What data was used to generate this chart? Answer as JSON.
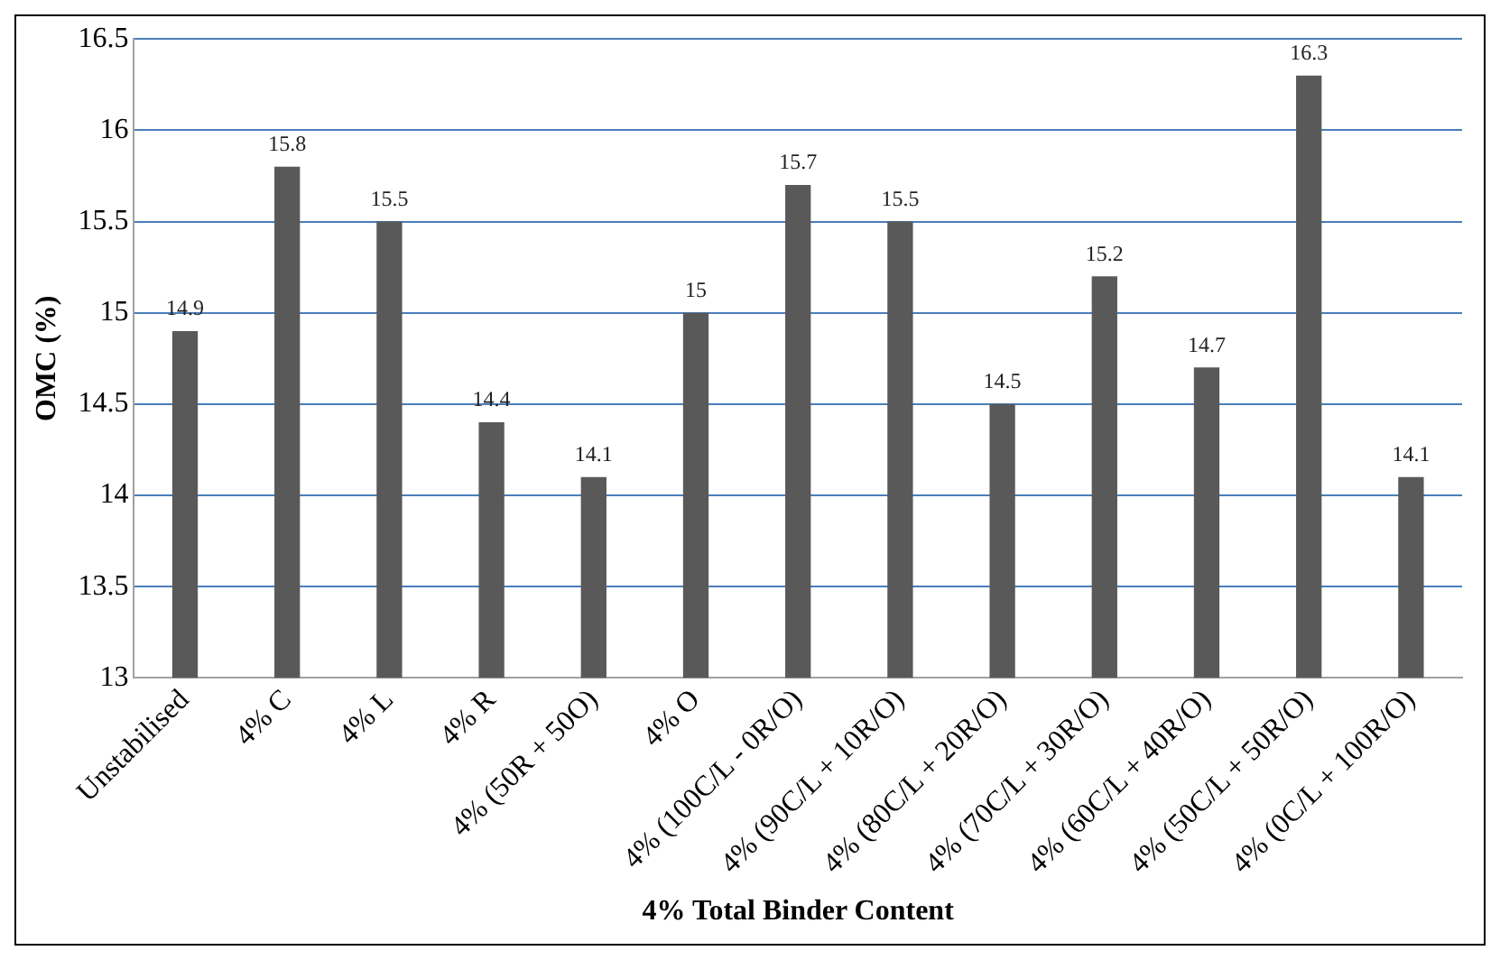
{
  "chart_data": {
    "type": "bar",
    "xlabel": "4% Total Binder Content",
    "ylabel": "OMC (%)",
    "categories": [
      "Unstabilised",
      "4% C",
      "4% L",
      "4% R",
      "4% (50R + 50O)",
      "4% O",
      "4% (100C/L - 0R/O)",
      "4% (90C/L + 10R/O)",
      "4% (80C/L + 20R/O)",
      "4% (70C/L + 30R/O)",
      "4% (60C/L + 40R/O)",
      "4% (50C/L + 50R/O)",
      "4% (0C/L + 100R/O)"
    ],
    "values": [
      14.9,
      15.8,
      15.5,
      14.4,
      14.1,
      15,
      15.7,
      15.5,
      14.5,
      15.2,
      14.7,
      16.3,
      14.1
    ],
    "color": "#595959",
    "ylim": [
      13,
      16.5
    ],
    "yticks": [
      13,
      13.5,
      14,
      14.5,
      15,
      15.5,
      16,
      16.5
    ],
    "grid": "y",
    "data_labels": true
  }
}
